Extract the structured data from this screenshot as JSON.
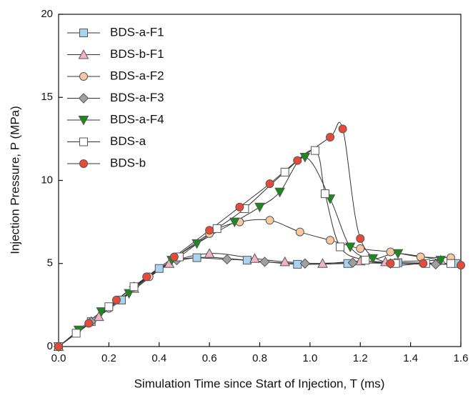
{
  "chart_data": {
    "type": "line",
    "xlabel": "Simulation Time since Start of Injection,  T (ms)",
    "ylabel": "Injection Pressure, P (MPa)",
    "xlim": [
      0,
      1.6
    ],
    "xticks": [
      {
        "value": 0,
        "label": "0.0"
      },
      0.2,
      0.4,
      0.6,
      0.8,
      {
        "value": 1,
        "label": "1.0"
      },
      1.2,
      1.4,
      1.6
    ],
    "ylim": [
      0,
      20
    ],
    "yticks": [
      0,
      5,
      10,
      15,
      20
    ],
    "grid": false,
    "legend": "upper-left",
    "series": [
      {
        "name": "BDS-a-F1",
        "color": "#a8d4f0",
        "marker": "square",
        "x": [
          0,
          0.13,
          0.25,
          0.4,
          0.55,
          0.75,
          0.95,
          1.15,
          1.35,
          1.58
        ],
        "values": [
          0,
          1.5,
          2.8,
          4.7,
          5.35,
          5.2,
          4.95,
          5.0,
          5.05,
          5.0
        ]
      },
      {
        "name": "BDS-b-F1",
        "color": "#f2b4c4",
        "marker": "triangle",
        "x": [
          0,
          0.16,
          0.3,
          0.44,
          0.6,
          0.78,
          0.9,
          1.05,
          1.2,
          1.3,
          1.52
        ],
        "values": [
          0,
          1.8,
          3.5,
          5.0,
          5.6,
          5.3,
          5.1,
          5.0,
          5.15,
          5.1,
          5.2
        ]
      },
      {
        "name": "BDS-a-F2",
        "color": "#f8c8a0",
        "marker": "circle",
        "x": [
          0,
          0.2,
          0.36,
          0.6,
          0.72,
          0.84,
          0.96,
          1.08,
          1.2,
          1.32,
          1.44,
          1.56
        ],
        "values": [
          0,
          2.3,
          4.2,
          6.8,
          7.5,
          7.6,
          6.9,
          6.4,
          5.9,
          5.7,
          5.4,
          5.35
        ]
      },
      {
        "name": "BDS-a-F3",
        "color": "#a0a0a0",
        "marker": "diamond",
        "x": [
          0,
          0.13,
          0.3,
          0.47,
          0.67,
          0.82,
          0.98,
          1.17,
          1.32,
          1.5
        ],
        "values": [
          0,
          1.5,
          3.6,
          5.2,
          5.25,
          5.1,
          5.0,
          5.05,
          5.0,
          4.95
        ]
      },
      {
        "name": "BDS-a-F4",
        "color": "#1a8a1a",
        "marker": "triangle-down",
        "x": [
          0,
          0.08,
          0.17,
          0.28,
          0.45,
          0.55,
          0.7,
          0.8,
          0.88,
          0.98,
          1.08,
          1.16,
          1.25,
          1.35,
          1.52
        ],
        "values": [
          0,
          1.0,
          2.1,
          3.2,
          5.2,
          6.2,
          7.5,
          8.4,
          9.3,
          11.4,
          8.9,
          6.0,
          5.3,
          5.6,
          5.2
        ]
      },
      {
        "name": "BDS-a",
        "color": "#ffffff",
        "marker": "square",
        "x": [
          0,
          0.07,
          0.2,
          0.3,
          0.48,
          0.63,
          0.74,
          0.9,
          1.02,
          1.06,
          1.12,
          1.22,
          1.34,
          1.46,
          1.56
        ],
        "values": [
          0,
          0.8,
          2.4,
          3.6,
          5.4,
          7.1,
          8.3,
          10.5,
          11.8,
          9.2,
          6.0,
          5.2,
          5.0,
          5.0,
          5.0
        ]
      },
      {
        "name": "BDS-b",
        "color": "#e84a3a",
        "marker": "circle",
        "x": [
          0,
          0.12,
          0.23,
          0.35,
          0.46,
          0.6,
          0.72,
          0.84,
          0.95,
          1.08,
          1.13,
          1.2,
          1.32,
          1.45,
          1.6
        ],
        "values": [
          0,
          1.4,
          2.8,
          4.2,
          5.4,
          7.0,
          8.4,
          9.8,
          11.2,
          12.6,
          13.1,
          6.5,
          5.0,
          5.0,
          4.9
        ]
      }
    ]
  }
}
